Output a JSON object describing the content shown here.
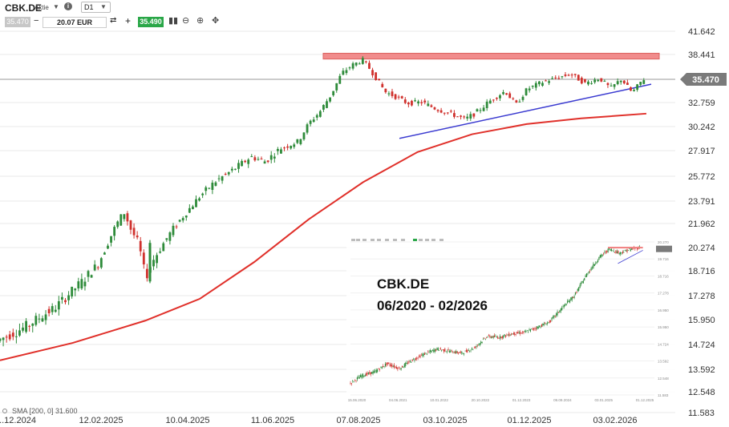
{
  "toolbar": {
    "symbol": "CBK.DE",
    "kind": "Aktie",
    "info_icon": "i",
    "timeframe": "D1",
    "bid": "35.470",
    "quantity": "20.07 EUR",
    "ask": "35.490",
    "icons": [
      "candles-icon",
      "zoom-out-icon",
      "zoom-in-icon",
      "crosshair-icon"
    ]
  },
  "overlay": {
    "line1": "CBK.DE",
    "line2": "06/2020 - 02/2026"
  },
  "chart_data": {
    "type": "candlestick",
    "symbol": "CBK.DE",
    "ylim": [
      11.583,
      42.5
    ],
    "y_ticks": [
      "41.642",
      "38.441",
      "35.470",
      "32.759",
      "30.242",
      "27.917",
      "25.772",
      "23.791",
      "21.962",
      "20.274",
      "18.716",
      "17.278",
      "15.950",
      "14.724",
      "13.592",
      "12.548",
      "11.583"
    ],
    "current_price": "35.470",
    "x_ticks": [
      "..12.2024",
      "12.02.2025",
      "10.04.2025",
      "11.06.2025",
      "07.08.2025",
      "03.10.2025",
      "01.12.2025",
      "03.02.2026"
    ],
    "sma_label": "SMA [200, 0] 31.600",
    "price_path": [
      [
        0,
        14.9
      ],
      [
        8,
        15.6
      ],
      [
        16,
        16.6
      ],
      [
        24,
        18.2
      ],
      [
        28,
        19.2
      ],
      [
        32,
        21.4
      ],
      [
        35,
        22.9
      ],
      [
        37,
        21.5
      ],
      [
        39,
        20.6
      ],
      [
        41,
        18.3
      ],
      [
        43,
        19.4
      ],
      [
        47,
        21.0
      ],
      [
        52,
        22.8
      ],
      [
        56,
        24.2
      ],
      [
        60,
        25.3
      ],
      [
        65,
        26.3
      ],
      [
        70,
        27.4
      ],
      [
        74,
        27.0
      ],
      [
        78,
        28.1
      ],
      [
        83,
        28.8
      ],
      [
        86,
        30.6
      ],
      [
        89,
        31.8
      ],
      [
        92,
        33.6
      ],
      [
        95,
        36.2
      ],
      [
        98,
        37.2
      ],
      [
        101,
        37.8
      ],
      [
        104,
        35.9
      ],
      [
        107,
        34.0
      ],
      [
        110,
        33.4
      ],
      [
        113,
        32.7
      ],
      [
        117,
        32.8
      ],
      [
        121,
        32.1
      ],
      [
        125,
        31.6
      ],
      [
        129,
        31.0
      ],
      [
        132,
        31.7
      ],
      [
        136,
        33.0
      ],
      [
        140,
        34.1
      ],
      [
        143,
        32.5
      ],
      [
        146,
        34.3
      ],
      [
        150,
        35.1
      ],
      [
        154,
        35.6
      ],
      [
        158,
        36.1
      ],
      [
        162,
        35.0
      ],
      [
        166,
        35.6
      ],
      [
        169,
        34.4
      ],
      [
        172,
        35.5
      ],
      [
        175,
        33.9
      ],
      [
        178,
        35.5
      ]
    ],
    "sma": {
      "name": "SMA [200, 0] 31.600",
      "color": "#e0302a",
      "points": [
        [
          0,
          14.0
        ],
        [
          20,
          14.8
        ],
        [
          40,
          15.9
        ],
        [
          55,
          17.1
        ],
        [
          70,
          19.3
        ],
        [
          85,
          22.3
        ],
        [
          100,
          25.3
        ],
        [
          115,
          27.8
        ],
        [
          130,
          29.5
        ],
        [
          145,
          30.5
        ],
        [
          160,
          31.1
        ],
        [
          178,
          31.6
        ]
      ]
    },
    "resistance_zone": {
      "from": 37.8,
      "to": 38.5,
      "color": "#f08080"
    },
    "trendline": {
      "color": "#3a3ad0",
      "points": [
        [
          110,
          29.1
        ],
        [
          178,
          34.6
        ]
      ]
    }
  },
  "inset_chart": {
    "y_ticks": [
      "20.270",
      "19.716",
      "18.716",
      "17.278",
      "16.950",
      "15.950",
      "14.724",
      "13.592",
      "12.548",
      "11.583"
    ],
    "x_ticks": [
      "15.06.2020",
      "04.06.2021",
      "10.01.2022",
      "20.10.2022",
      "01.12.2023",
      "09.09.2024",
      "03.01.2025",
      "01.12.2025"
    ],
    "price_path": [
      [
        0,
        1.6
      ],
      [
        5,
        2.8
      ],
      [
        10,
        3.3
      ],
      [
        15,
        4.5
      ],
      [
        20,
        3.8
      ],
      [
        25,
        5.0
      ],
      [
        30,
        5.9
      ],
      [
        35,
        6.6
      ],
      [
        40,
        6.3
      ],
      [
        45,
        6.0
      ],
      [
        50,
        6.8
      ],
      [
        55,
        8.4
      ],
      [
        60,
        8.3
      ],
      [
        65,
        8.8
      ],
      [
        70,
        9.0
      ],
      [
        75,
        9.7
      ],
      [
        80,
        10.5
      ],
      [
        85,
        12.5
      ],
      [
        90,
        14.3
      ],
      [
        95,
        17.4
      ],
      [
        100,
        19.8
      ],
      [
        104,
        21.0
      ],
      [
        108,
        20.4
      ],
      [
        112,
        20.9
      ],
      [
        116,
        21.2
      ]
    ]
  },
  "colors": {
    "up": "#2e8b3a",
    "down": "#d0312d",
    "axis_text": "#333333",
    "grid": "#e9e9e9"
  }
}
